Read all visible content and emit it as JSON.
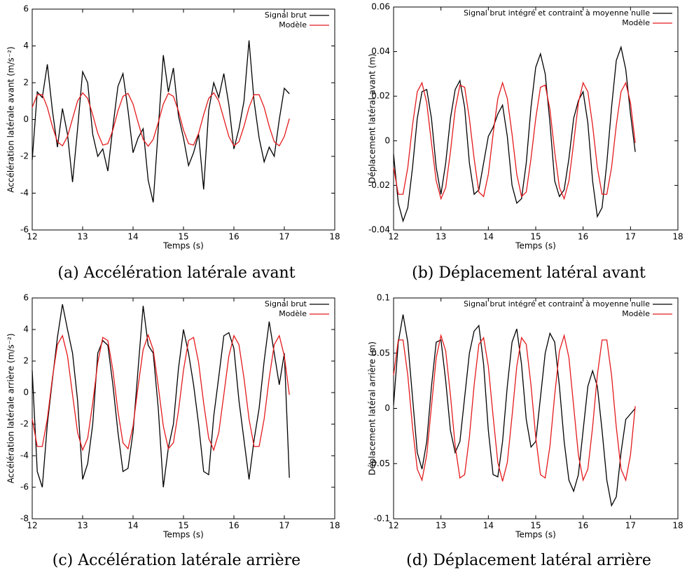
{
  "chart_data": [
    {
      "type": "line",
      "caption": "(a) Accélération latérale avant",
      "xlabel": "Temps (s)",
      "ylabel": "Accélération latérale avant (m/s⁻²)",
      "xlim": [
        12,
        18
      ],
      "xticks": [
        12,
        13,
        14,
        15,
        16,
        17,
        18
      ],
      "ylim": [
        -6,
        6
      ],
      "yticks": [
        -6,
        -4,
        -2,
        0,
        2,
        4,
        6
      ],
      "legend": "upper right",
      "x": [
        12.0,
        12.1,
        12.2,
        12.3,
        12.4,
        12.5,
        12.6,
        12.7,
        12.8,
        12.9,
        13.0,
        13.1,
        13.2,
        13.3,
        13.4,
        13.5,
        13.6,
        13.7,
        13.8,
        13.9,
        14.0,
        14.1,
        14.2,
        14.3,
        14.4,
        14.5,
        14.6,
        14.7,
        14.8,
        14.9,
        15.0,
        15.1,
        15.2,
        15.3,
        15.4,
        15.5,
        15.6,
        15.7,
        15.8,
        15.9,
        16.0,
        16.1,
        16.2,
        16.3,
        16.4,
        16.5,
        16.6,
        16.7,
        16.8,
        16.9,
        17.0,
        17.1
      ],
      "series": [
        {
          "name": "Signal brut",
          "color": "#000000",
          "values": [
            -2.2,
            1.5,
            1.2,
            3.0,
            0.5,
            -1.5,
            0.6,
            -0.8,
            -3.4,
            -0.5,
            2.6,
            2.0,
            -0.8,
            -2.0,
            -1.6,
            -2.8,
            -0.4,
            1.8,
            2.5,
            0.5,
            -1.8,
            -1.0,
            -0.5,
            -3.3,
            -4.5,
            -0.5,
            3.5,
            1.5,
            2.8,
            0.2,
            -1.0,
            -2.5,
            -1.8,
            -0.8,
            -3.8,
            0.5,
            2.0,
            1.2,
            2.5,
            0.8,
            -1.6,
            -0.5,
            1.0,
            4.3,
            1.0,
            -1.0,
            -2.3,
            -1.5,
            -2.0,
            0.0,
            1.7,
            1.4
          ]
        },
        {
          "name": "Modèle",
          "color": "#e41a1c",
          "values": [
            0.66,
            1.35,
            1.35,
            0.66,
            -0.37,
            -1.21,
            -1.43,
            -0.92,
            0.05,
            1.01,
            1.45,
            1.15,
            0.26,
            -0.75,
            -1.39,
            -1.31,
            -0.57,
            0.47,
            1.26,
            1.42,
            0.84,
            -0.16,
            -1.08,
            -1.45,
            -1.08,
            -0.16,
            0.84,
            1.42,
            1.26,
            0.47,
            -0.57,
            -1.31,
            -1.39,
            -0.75,
            0.26,
            1.15,
            1.45,
            1.01,
            0.05,
            -0.92,
            -1.43,
            -1.21,
            -0.37,
            0.66,
            1.35,
            1.35,
            0.66,
            -0.37,
            -1.21,
            -1.43,
            -0.92,
            0.05
          ]
        }
      ]
    },
    {
      "type": "line",
      "caption": "(b) Déplacement latéral avant",
      "xlabel": "Temps (s)",
      "ylabel": "Déplacement latéral avant (m)",
      "xlim": [
        12,
        18
      ],
      "xticks": [
        12,
        13,
        14,
        15,
        16,
        17,
        18
      ],
      "ylim": [
        -0.04,
        0.06
      ],
      "yticks": [
        -0.04,
        -0.02,
        0,
        0.02,
        0.04,
        0.06
      ],
      "legend": "upper right",
      "x": [
        12.0,
        12.1,
        12.2,
        12.3,
        12.4,
        12.5,
        12.6,
        12.7,
        12.8,
        12.9,
        13.0,
        13.1,
        13.2,
        13.3,
        13.4,
        13.5,
        13.6,
        13.7,
        13.8,
        13.9,
        14.0,
        14.1,
        14.2,
        14.3,
        14.4,
        14.5,
        14.6,
        14.7,
        14.8,
        14.9,
        15.0,
        15.1,
        15.2,
        15.3,
        15.4,
        15.5,
        15.6,
        15.7,
        15.8,
        15.9,
        16.0,
        16.1,
        16.2,
        16.3,
        16.4,
        16.5,
        16.6,
        16.7,
        16.8,
        16.9,
        17.0,
        17.1
      ],
      "series": [
        {
          "name": "Signal brut intégré et contraint à moyenne nulle",
          "color": "#000000",
          "values": [
            -0.006,
            -0.028,
            -0.036,
            -0.03,
            -0.012,
            0.01,
            0.022,
            0.023,
            0.01,
            -0.012,
            -0.024,
            -0.01,
            0.01,
            0.023,
            0.027,
            0.015,
            -0.01,
            -0.024,
            -0.022,
            -0.01,
            0.002,
            0.006,
            0.012,
            0.016,
            0.002,
            -0.02,
            -0.028,
            -0.026,
            -0.01,
            0.015,
            0.033,
            0.039,
            0.03,
            0.008,
            -0.018,
            -0.025,
            -0.022,
            -0.008,
            0.01,
            0.018,
            0.022,
            0.008,
            -0.018,
            -0.034,
            -0.03,
            -0.01,
            0.015,
            0.036,
            0.042,
            0.032,
            0.012,
            -0.005
          ]
        },
        {
          "name": "Modèle",
          "color": "#e41a1c",
          "values": [
            -0.012,
            -0.024,
            -0.024,
            -0.012,
            0.007,
            0.022,
            0.026,
            0.017,
            -0.001,
            -0.018,
            -0.026,
            -0.021,
            -0.005,
            0.014,
            0.025,
            0.024,
            0.01,
            -0.008,
            -0.023,
            -0.025,
            -0.015,
            0.003,
            0.019,
            0.026,
            0.019,
            0.003,
            -0.015,
            -0.025,
            -0.023,
            -0.008,
            0.01,
            0.024,
            0.025,
            0.014,
            -0.005,
            -0.021,
            -0.026,
            -0.018,
            -0.001,
            0.017,
            0.026,
            0.022,
            0.007,
            -0.012,
            -0.024,
            -0.024,
            -0.012,
            0.007,
            0.022,
            0.026,
            0.017,
            -0.001
          ]
        }
      ]
    },
    {
      "type": "line",
      "caption": "(c) Accélération latérale arrière",
      "xlabel": "Temps (s)",
      "ylabel": "Accélération latérale arrière (m/s⁻²)",
      "xlim": [
        12,
        18
      ],
      "xticks": [
        12,
        13,
        14,
        15,
        16,
        17,
        18
      ],
      "ylim": [
        -8,
        6
      ],
      "yticks": [
        -8,
        -6,
        -4,
        -2,
        0,
        2,
        4,
        6
      ],
      "legend": "upper right",
      "x": [
        12.0,
        12.1,
        12.2,
        12.3,
        12.4,
        12.5,
        12.6,
        12.7,
        12.8,
        12.9,
        13.0,
        13.1,
        13.2,
        13.3,
        13.4,
        13.5,
        13.6,
        13.7,
        13.8,
        13.9,
        14.0,
        14.1,
        14.2,
        14.3,
        14.4,
        14.5,
        14.6,
        14.7,
        14.8,
        14.9,
        15.0,
        15.1,
        15.2,
        15.3,
        15.4,
        15.5,
        15.6,
        15.7,
        15.8,
        15.9,
        16.0,
        16.1,
        16.2,
        16.3,
        16.4,
        16.5,
        16.6,
        16.7,
        16.8,
        16.9,
        17.0,
        17.1
      ],
      "series": [
        {
          "name": "Signal brut",
          "color": "#000000",
          "values": [
            1.4,
            -5.0,
            -6.0,
            -2.0,
            0.8,
            3.5,
            5.6,
            4.0,
            2.5,
            -0.5,
            -5.5,
            -4.5,
            -2.0,
            2.5,
            3.3,
            3.0,
            0.5,
            -2.5,
            -5.0,
            -4.8,
            -2.5,
            1.5,
            5.5,
            3.0,
            2.5,
            -1.0,
            -6.0,
            -3.5,
            -2.0,
            1.5,
            4.0,
            2.5,
            0.5,
            -2.0,
            -5.0,
            -5.2,
            -1.5,
            1.0,
            3.6,
            3.8,
            2.8,
            -0.5,
            -3.0,
            -5.5,
            -3.0,
            -1.0,
            2.0,
            4.5,
            2.5,
            0.5,
            2.5,
            -5.4
          ]
        },
        {
          "name": "Modèle",
          "color": "#e41a1c",
          "values": [
            -1.67,
            -3.41,
            -3.41,
            -1.67,
            0.92,
            3.04,
            3.61,
            2.32,
            -0.14,
            -2.53,
            -3.64,
            -2.89,
            -0.66,
            1.9,
            3.5,
            3.3,
            1.42,
            -1.18,
            -3.18,
            -3.56,
            -2.12,
            0.4,
            2.72,
            3.65,
            2.72,
            0.4,
            -2.12,
            -3.56,
            -3.18,
            -1.18,
            1.42,
            3.3,
            3.5,
            1.9,
            -0.66,
            -2.89,
            -3.64,
            -2.53,
            -0.14,
            2.32,
            3.61,
            3.04,
            0.92,
            -1.67,
            -3.41,
            -3.41,
            -1.67,
            0.92,
            3.04,
            3.61,
            2.32,
            -0.14
          ]
        }
      ]
    },
    {
      "type": "line",
      "caption": "(d) Déplacement latéral arrière",
      "xlabel": "Temps (s)",
      "ylabel": "Déplacement latéral arrière (m)",
      "xlim": [
        12,
        18
      ],
      "xticks": [
        12,
        13,
        14,
        15,
        16,
        17,
        18
      ],
      "ylim": [
        -0.1,
        0.1
      ],
      "yticks": [
        -0.1,
        -0.05,
        0,
        0.05,
        0.1
      ],
      "legend": "upper right",
      "x": [
        12.0,
        12.1,
        12.2,
        12.3,
        12.4,
        12.5,
        12.6,
        12.7,
        12.8,
        12.9,
        13.0,
        13.1,
        13.2,
        13.3,
        13.4,
        13.5,
        13.6,
        13.7,
        13.8,
        13.9,
        14.0,
        14.1,
        14.2,
        14.3,
        14.4,
        14.5,
        14.6,
        14.7,
        14.8,
        14.9,
        15.0,
        15.1,
        15.2,
        15.3,
        15.4,
        15.5,
        15.6,
        15.7,
        15.8,
        15.9,
        16.0,
        16.1,
        16.2,
        16.3,
        16.4,
        16.5,
        16.6,
        16.7,
        16.8,
        16.9,
        17.0,
        17.1
      ],
      "series": [
        {
          "name": "Signal brut intégré et contraint à moyenne nulle",
          "color": "#000000",
          "values": [
            0.003,
            0.06,
            0.085,
            0.06,
            0.01,
            -0.04,
            -0.055,
            -0.03,
            0.02,
            0.06,
            0.062,
            0.025,
            -0.02,
            -0.04,
            -0.03,
            0.01,
            0.05,
            0.07,
            0.075,
            0.04,
            -0.02,
            -0.06,
            -0.062,
            -0.03,
            0.02,
            0.06,
            0.072,
            0.04,
            -0.01,
            -0.035,
            -0.03,
            0.01,
            0.05,
            0.068,
            0.06,
            0.02,
            -0.03,
            -0.065,
            -0.075,
            -0.06,
            -0.02,
            0.02,
            0.034,
            0.02,
            -0.02,
            -0.065,
            -0.088,
            -0.08,
            -0.04,
            -0.01,
            -0.005,
            0.0
          ]
        },
        {
          "name": "Modèle",
          "color": "#e41a1c",
          "values": [
            0.03,
            0.062,
            0.062,
            0.03,
            -0.017,
            -0.055,
            -0.065,
            -0.042,
            0.002,
            0.046,
            0.066,
            0.052,
            0.012,
            -0.034,
            -0.063,
            -0.06,
            -0.026,
            0.021,
            0.058,
            0.064,
            0.038,
            -0.007,
            -0.049,
            -0.066,
            -0.049,
            -0.007,
            0.038,
            0.064,
            0.058,
            0.021,
            -0.026,
            -0.06,
            -0.063,
            -0.034,
            0.012,
            0.052,
            0.066,
            0.046,
            0.002,
            -0.042,
            -0.065,
            -0.055,
            -0.017,
            0.03,
            0.062,
            0.062,
            0.03,
            -0.017,
            -0.055,
            -0.065,
            -0.042,
            0.002
          ]
        }
      ]
    }
  ]
}
